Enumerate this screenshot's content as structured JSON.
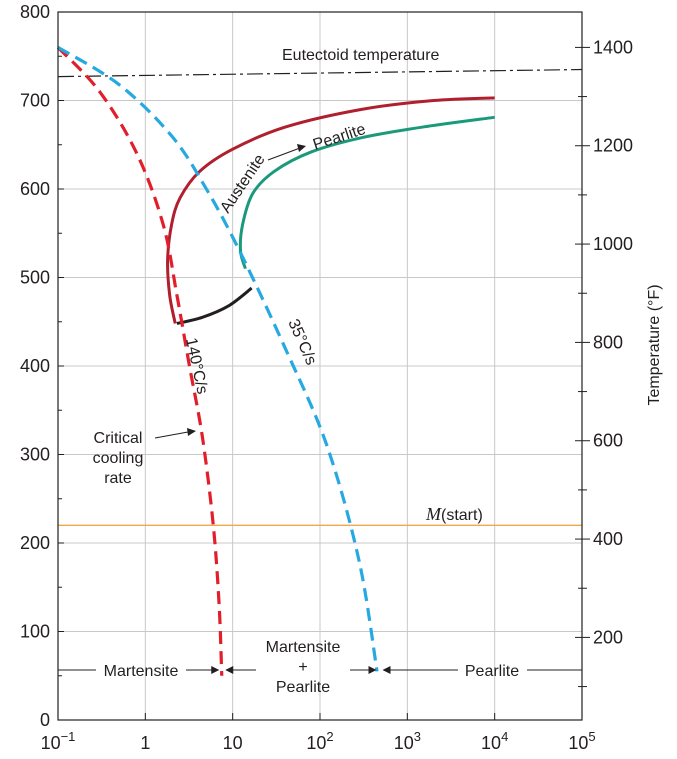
{
  "chart_data": {
    "type": "line",
    "title": "",
    "xlabel": "",
    "ylabel": "",
    "y2label": "Temperature (°F)",
    "x_scale": "log",
    "xlim": [
      0.1,
      100000
    ],
    "ylim": [
      0,
      800
    ],
    "y2lim": [
      32,
      1472
    ],
    "grid": true,
    "x_ticks": [
      {
        "value": 0.1,
        "base": "10",
        "exp": "−1"
      },
      {
        "value": 1,
        "text": "1"
      },
      {
        "value": 10,
        "text": "10"
      },
      {
        "value": 100,
        "base": "10",
        "exp": "2"
      },
      {
        "value": 1000,
        "base": "10",
        "exp": "3"
      },
      {
        "value": 10000,
        "base": "10",
        "exp": "4"
      },
      {
        "value": 100000,
        "base": "10",
        "exp": "5"
      }
    ],
    "y_ticks": [
      0,
      100,
      200,
      300,
      400,
      500,
      600,
      700,
      800
    ],
    "y2_ticks": [
      200,
      400,
      600,
      800,
      1000,
      1200,
      1400
    ],
    "series": [
      {
        "key": "eutectoid",
        "style": "dashdot",
        "color": "#231f20",
        "x": [
          0.1,
          100000
        ],
        "y": [
          727,
          735
        ]
      },
      {
        "key": "ms",
        "style": "solid",
        "color": "#f7a54a",
        "x": [
          0.1,
          100000
        ],
        "y": [
          220,
          220
        ]
      },
      {
        "key": "pearlite_start",
        "style": "solid",
        "color": "#b01f2e",
        "x": [
          2.2,
          1.9,
          1.8,
          2.0,
          2.5,
          4.2,
          10,
          40,
          300,
          2000,
          10000
        ],
        "y": [
          448,
          480,
          520,
          560,
          590,
          620,
          645,
          670,
          690,
          700,
          703
        ]
      },
      {
        "key": "pearlite_finish",
        "style": "solid",
        "color": "#1a9a7a",
        "x": [
          14,
          12.3,
          13,
          17,
          30,
          80,
          300,
          1500,
          10000
        ],
        "y": [
          510,
          530,
          560,
          595,
          620,
          642,
          658,
          670,
          681
        ]
      },
      {
        "key": "pearlite_stop",
        "style": "solid",
        "color": "#231f20",
        "x": [
          2.3,
          4.5,
          9,
          16.5
        ],
        "y": [
          448,
          455,
          468,
          488
        ]
      },
      {
        "key": "critical_140",
        "style": "dashed",
        "color": "#e31e2b",
        "x": [
          0.1,
          0.3,
          0.8,
          1.6,
          2.3,
          3.2,
          4.5,
          6,
          7,
          7.5
        ],
        "y": [
          760,
          710,
          640,
          560,
          480,
          400,
          320,
          220,
          130,
          50
        ]
      },
      {
        "key": "rate_35",
        "style": "dashed",
        "color": "#26a9e1",
        "x": [
          0.1,
          0.5,
          2,
          5,
          12,
          40,
          120,
          280,
          450
        ],
        "y": [
          760,
          718,
          660,
          600,
          530,
          420,
          310,
          180,
          55
        ]
      }
    ],
    "annotations": {
      "eutectoid": "Eutectoid temperature",
      "austenite": "Austenite",
      "pearlite_top": "Pearlite",
      "rate_140": "140°C/s",
      "rate_35": "35°C/s",
      "critical": [
        "Critical",
        "cooling",
        "rate"
      ],
      "m_start_italic": "M",
      "m_start_rest": "(start)",
      "martensite": "Martensite",
      "martensite_pearlite": [
        "Martensite",
        "+",
        "Pearlite"
      ],
      "pearlite_bottom": "Pearlite"
    },
    "colors": {
      "red_dark": "#b01f2e",
      "red": "#e31e2b",
      "cyan": "#26a9e1",
      "teal": "#1a9a7a",
      "orange": "#f7a54a",
      "text": "#231f20"
    }
  }
}
